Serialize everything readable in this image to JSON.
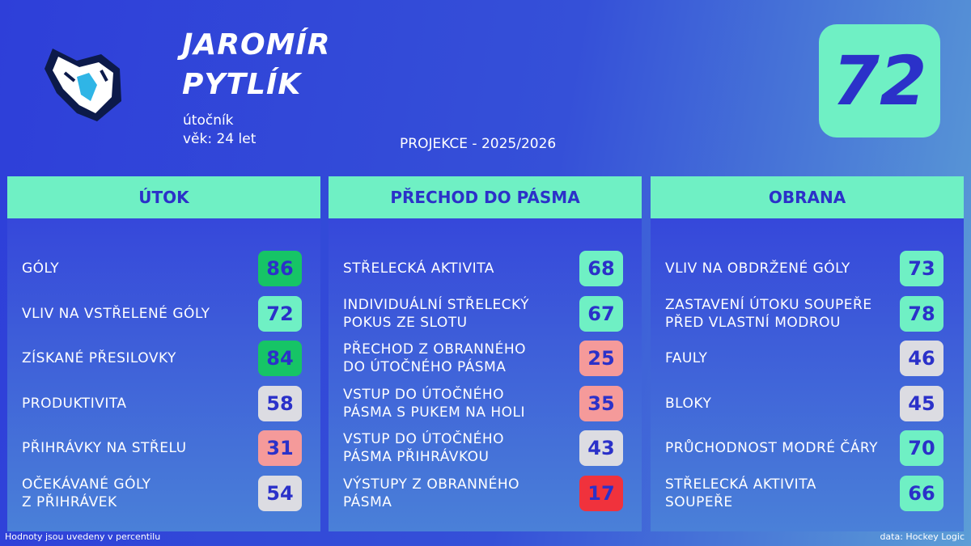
{
  "header": {
    "name": [
      "JAROMÍR",
      "PYTLÍK"
    ],
    "position": "útočník",
    "age": "věk: 24 let",
    "projection": "PROJEKCE - 2025/2026",
    "rating": 72
  },
  "panels": [
    {
      "title": "ÚTOK",
      "items": [
        {
          "label": [
            "GÓLY"
          ],
          "value": 86,
          "color": "#16c466"
        },
        {
          "label": [
            "VLIV NA VSTŘELENÉ GÓLY"
          ],
          "value": 72,
          "color": "#6ff0c4"
        },
        {
          "label": [
            "ZÍSKANÉ PŘESILOVKY"
          ],
          "value": 84,
          "color": "#16c466"
        },
        {
          "label": [
            "PRODUKTIVITA"
          ],
          "value": 58,
          "color": "#dcdce2"
        },
        {
          "label": [
            "PŘIHRÁVKY NA STŘELU"
          ],
          "value": 31,
          "color": "#f59a9a"
        },
        {
          "label": [
            "OČEKÁVANÉ GÓLY",
            "Z PŘIHRÁVEK"
          ],
          "value": 54,
          "color": "#dcdce2"
        }
      ]
    },
    {
      "title": "PŘECHOD DO PÁSMA",
      "items": [
        {
          "label": [
            "STŘELECKÁ AKTIVITA"
          ],
          "value": 68,
          "color": "#6ff0c4"
        },
        {
          "label": [
            "INDIVIDUÁLNÍ STŘELECKÝ",
            "POKUS ZE SLOTU"
          ],
          "value": 67,
          "color": "#6ff0c4"
        },
        {
          "label": [
            "PŘECHOD Z OBRANNÉHO",
            "DO ÚTOČNÉHO PÁSMA"
          ],
          "value": 25,
          "color": "#f59a9a"
        },
        {
          "label": [
            "VSTUP DO ÚTOČNÉHO",
            "PÁSMA S PUKEM NA HOLI"
          ],
          "value": 35,
          "color": "#f59a9a"
        },
        {
          "label": [
            "VSTUP DO ÚTOČNÉHO",
            "PÁSMA PŘIHRÁVKOU"
          ],
          "value": 43,
          "color": "#dcdce2"
        },
        {
          "label": [
            "VÝSTUPY Z OBRANNÉHO",
            "PÁSMA"
          ],
          "value": 17,
          "color": "#f0323c"
        }
      ]
    },
    {
      "title": "OBRANA",
      "items": [
        {
          "label": [
            "VLIV NA OBDRŽENÉ GÓLY"
          ],
          "value": 73,
          "color": "#6ff0c4"
        },
        {
          "label": [
            "ZASTAVENÍ ÚTOKU SOUPEŘE",
            "PŘED VLASTNÍ MODROU"
          ],
          "value": 78,
          "color": "#6ff0c4"
        },
        {
          "label": [
            "FAULY"
          ],
          "value": 46,
          "color": "#dcdce2"
        },
        {
          "label": [
            "BLOKY"
          ],
          "value": 45,
          "color": "#dcdce2"
        },
        {
          "label": [
            "PRŮCHODNOST MODRÉ ČÁRY"
          ],
          "value": 70,
          "color": "#6ff0c4"
        },
        {
          "label": [
            "STŘELECKÁ AKTIVITA",
            "SOUPEŘE"
          ],
          "value": 66,
          "color": "#6ff0c4"
        }
      ]
    }
  ],
  "footer": {
    "note": "Hodnoty jsou uvedeny v percentilu",
    "source": "data: Hockey Logic"
  }
}
